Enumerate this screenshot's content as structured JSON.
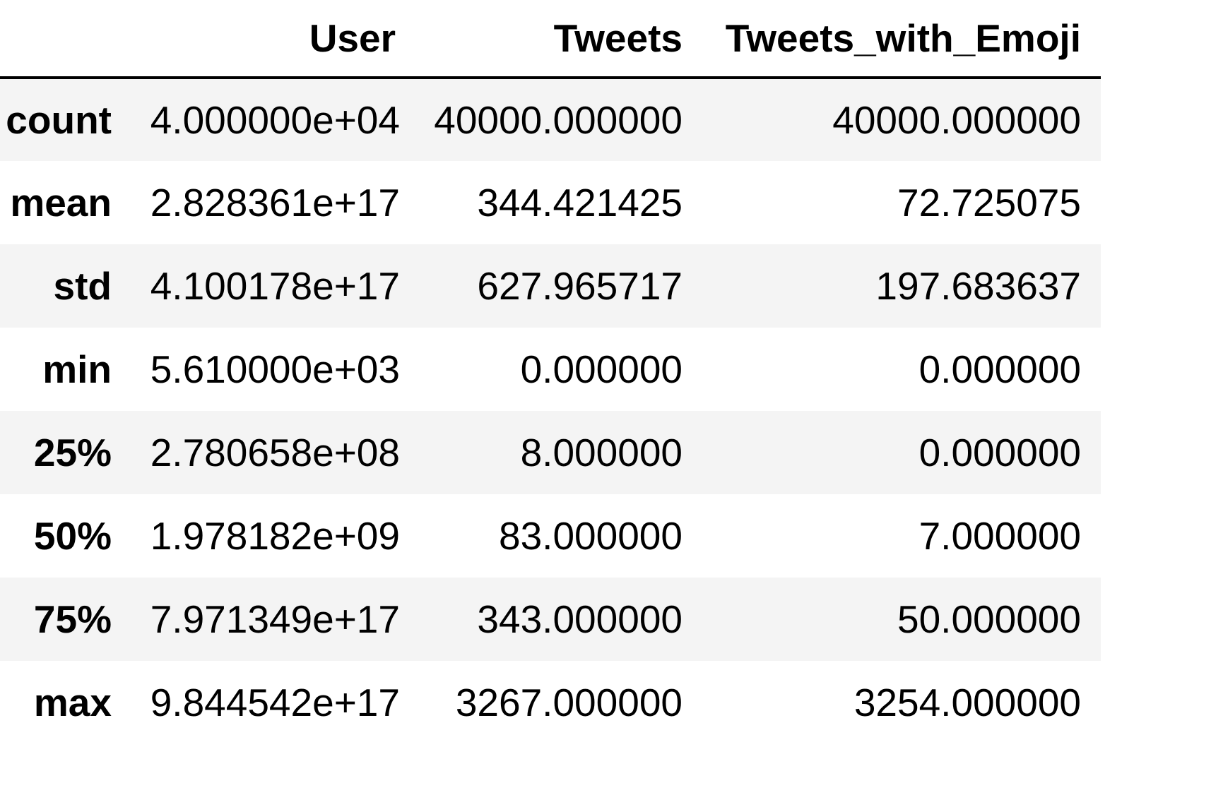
{
  "table": {
    "columns": [
      "",
      "User",
      "Tweets",
      "Tweets_with_Emoji"
    ],
    "rows": [
      {
        "index": "count",
        "user": "4.000000e+04",
        "tweets": "40000.000000",
        "tweets_with_emoji": "40000.000000"
      },
      {
        "index": "mean",
        "user": "2.828361e+17",
        "tweets": "344.421425",
        "tweets_with_emoji": "72.725075"
      },
      {
        "index": "std",
        "user": "4.100178e+17",
        "tweets": "627.965717",
        "tweets_with_emoji": "197.683637"
      },
      {
        "index": "min",
        "user": "5.610000e+03",
        "tweets": "0.000000",
        "tweets_with_emoji": "0.000000"
      },
      {
        "index": "25%",
        "user": "2.780658e+08",
        "tweets": "8.000000",
        "tweets_with_emoji": "0.000000"
      },
      {
        "index": "50%",
        "user": "1.978182e+09",
        "tweets": "83.000000",
        "tweets_with_emoji": "7.000000"
      },
      {
        "index": "75%",
        "user": "7.971349e+17",
        "tweets": "343.000000",
        "tweets_with_emoji": "50.000000"
      },
      {
        "index": "max",
        "user": "9.844542e+17",
        "tweets": "3267.000000",
        "tweets_with_emoji": "3254.000000"
      }
    ]
  },
  "colors": {
    "striped_row": "#f4f4f4",
    "plain_row": "#ffffff",
    "rule": "#000000",
    "text": "#000000"
  }
}
